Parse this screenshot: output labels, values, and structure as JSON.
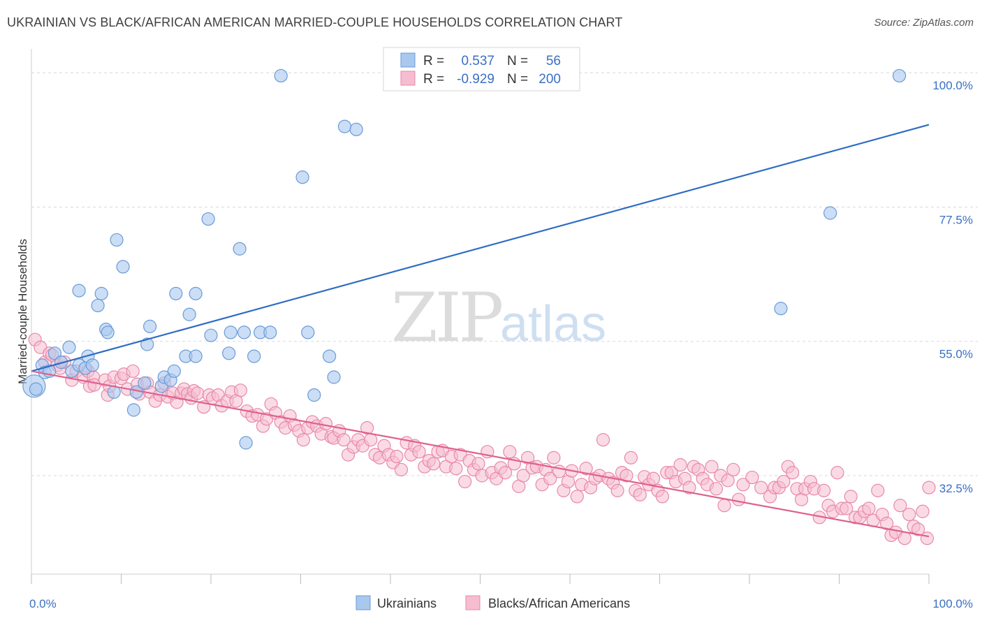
{
  "title": "UKRAINIAN VS BLACK/AFRICAN AMERICAN MARRIED-COUPLE HOUSEHOLDS CORRELATION CHART",
  "source": "Source: ZipAtlas.com",
  "watermark": {
    "zip": "ZIP",
    "atlas": "atlas"
  },
  "colors": {
    "blue_fill": "#a9c8ee",
    "blue_stroke": "#6a9ad8",
    "blue_line": "#2e6cc4",
    "pink_fill": "#f6bdd0",
    "pink_stroke": "#e888aa",
    "pink_line": "#e0608e",
    "grid": "#d8d8d8",
    "tick_label": "#3a6fc4"
  },
  "legend": {
    "rows": [
      {
        "r_label": "R =",
        "r_value": "0.537",
        "n_label": "N =",
        "n_value": "56"
      },
      {
        "r_label": "R =",
        "r_value": "-0.929",
        "n_label": "N =",
        "n_value": "200"
      }
    ]
  },
  "chart_data": {
    "type": "scatter",
    "title": "UKRAINIAN VS BLACK/AFRICAN AMERICAN MARRIED-COUPLE HOUSEHOLDS CORRELATION CHART",
    "xlabel": "",
    "ylabel": "Married-couple Households",
    "xlim": [
      0,
      100
    ],
    "ylim": [
      16,
      104
    ],
    "x_tick_labels": [
      "0.0%",
      "100.0%"
    ],
    "y_ticks": [
      32.5,
      55.0,
      77.5,
      100.0
    ],
    "y_tick_labels": [
      "32.5%",
      "55.0%",
      "77.5%",
      "100.0%"
    ],
    "grid": "horizontal dashed",
    "legend_position": "top-center",
    "series": [
      {
        "name": "Ukrainians",
        "color": "#a9c8ee",
        "r": 0.537,
        "n": 56,
        "trend": {
          "x": [
            0,
            100
          ],
          "y": [
            50.0,
            91.3
          ]
        },
        "points": [
          [
            0.3,
            47.5
          ],
          [
            0.5,
            47.0
          ],
          [
            1.2,
            51.0
          ],
          [
            1.5,
            49.8
          ],
          [
            2.0,
            50.0
          ],
          [
            2.6,
            53.0
          ],
          [
            3.3,
            51.5
          ],
          [
            4.2,
            54.0
          ],
          [
            4.5,
            50.0
          ],
          [
            5.3,
            51.0
          ],
          [
            5.3,
            63.5
          ],
          [
            6.0,
            50.5
          ],
          [
            6.3,
            52.5
          ],
          [
            6.8,
            51.0
          ],
          [
            7.4,
            61.0
          ],
          [
            7.8,
            63.0
          ],
          [
            8.3,
            57.0
          ],
          [
            8.5,
            56.5
          ],
          [
            9.2,
            46.5
          ],
          [
            9.5,
            72.0
          ],
          [
            10.2,
            67.5
          ],
          [
            11.4,
            43.5
          ],
          [
            11.7,
            46.5
          ],
          [
            12.6,
            48.0
          ],
          [
            12.9,
            54.5
          ],
          [
            13.2,
            57.5
          ],
          [
            14.5,
            47.5
          ],
          [
            14.8,
            49.0
          ],
          [
            15.5,
            48.5
          ],
          [
            15.9,
            50.0
          ],
          [
            16.1,
            63.0
          ],
          [
            17.2,
            52.5
          ],
          [
            17.6,
            59.5
          ],
          [
            18.3,
            52.5
          ],
          [
            18.3,
            63.0
          ],
          [
            19.7,
            75.5
          ],
          [
            20.0,
            56.0
          ],
          [
            22.0,
            53.0
          ],
          [
            22.2,
            56.5
          ],
          [
            23.2,
            70.5
          ],
          [
            23.7,
            56.5
          ],
          [
            24.8,
            52.5
          ],
          [
            23.9,
            38.0
          ],
          [
            25.5,
            56.5
          ],
          [
            26.6,
            56.5
          ],
          [
            27.8,
            99.5
          ],
          [
            30.8,
            56.5
          ],
          [
            30.2,
            82.5
          ],
          [
            31.5,
            46.0
          ],
          [
            33.2,
            52.5
          ],
          [
            33.7,
            49.0
          ],
          [
            34.9,
            91.0
          ],
          [
            36.2,
            90.5
          ],
          [
            83.5,
            60.5
          ],
          [
            89.0,
            76.5
          ],
          [
            96.7,
            99.5
          ]
        ]
      },
      {
        "name": "Blacks/African Americans",
        "color": "#f6bdd0",
        "r": -0.929,
        "n": 200,
        "trend": {
          "x": [
            0,
            100
          ],
          "y": [
            50.0,
            22.3
          ]
        },
        "points": [
          [
            0.4,
            55.3
          ],
          [
            1.0,
            54.0
          ],
          [
            1.5,
            51.5
          ],
          [
            2.0,
            53.0
          ],
          [
            2.3,
            52.7
          ],
          [
            2.9,
            51.0
          ],
          [
            3.2,
            50.5
          ],
          [
            3.7,
            51.5
          ],
          [
            4.5,
            48.5
          ],
          [
            5.0,
            50.0
          ],
          [
            5.8,
            49.0
          ],
          [
            6.3,
            50.0
          ],
          [
            6.9,
            49.0
          ],
          [
            6.5,
            47.5
          ],
          [
            7.0,
            47.7
          ],
          [
            8.2,
            48.5
          ],
          [
            8.5,
            46.0
          ],
          [
            8.7,
            47.5
          ],
          [
            9.2,
            49.0
          ],
          [
            10.0,
            48.8
          ],
          [
            10.3,
            49.5
          ],
          [
            10.7,
            47.0
          ],
          [
            11.3,
            50.0
          ],
          [
            11.8,
            47.8
          ],
          [
            12.0,
            46.2
          ],
          [
            12.9,
            48.0
          ],
          [
            13.2,
            46.5
          ],
          [
            13.8,
            45.0
          ],
          [
            14.3,
            46.0
          ],
          [
            14.8,
            48.0
          ],
          [
            15.2,
            45.7
          ],
          [
            15.8,
            46.3
          ],
          [
            16.2,
            44.8
          ],
          [
            16.7,
            46.3
          ],
          [
            17.0,
            47.0
          ],
          [
            17.4,
            46.2
          ],
          [
            17.8,
            45.5
          ],
          [
            18.1,
            46.7
          ],
          [
            18.5,
            46.3
          ],
          [
            19.2,
            44.0
          ],
          [
            19.8,
            46.0
          ],
          [
            20.2,
            45.5
          ],
          [
            20.8,
            46.0
          ],
          [
            21.2,
            44.2
          ],
          [
            21.8,
            45.0
          ],
          [
            22.3,
            46.5
          ],
          [
            22.8,
            45.0
          ],
          [
            23.3,
            46.8
          ],
          [
            24.0,
            43.3
          ],
          [
            24.6,
            42.5
          ],
          [
            25.2,
            42.7
          ],
          [
            25.8,
            40.8
          ],
          [
            26.2,
            42.0
          ],
          [
            26.7,
            44.5
          ],
          [
            27.2,
            43.0
          ],
          [
            27.8,
            41.5
          ],
          [
            28.3,
            40.5
          ],
          [
            28.8,
            42.5
          ],
          [
            29.3,
            41.0
          ],
          [
            29.8,
            40.0
          ],
          [
            30.3,
            38.5
          ],
          [
            30.8,
            40.5
          ],
          [
            31.3,
            41.5
          ],
          [
            31.8,
            40.8
          ],
          [
            32.3,
            39.5
          ],
          [
            32.8,
            41.2
          ],
          [
            33.4,
            39.0
          ],
          [
            33.7,
            38.8
          ],
          [
            34.3,
            40.0
          ],
          [
            34.8,
            38.5
          ],
          [
            35.3,
            36.0
          ],
          [
            35.9,
            37.3
          ],
          [
            36.4,
            38.5
          ],
          [
            36.9,
            37.5
          ],
          [
            37.4,
            40.5
          ],
          [
            37.8,
            38.5
          ],
          [
            38.3,
            36.0
          ],
          [
            38.8,
            35.5
          ],
          [
            39.3,
            37.5
          ],
          [
            39.8,
            36.0
          ],
          [
            40.3,
            34.7
          ],
          [
            40.7,
            35.7
          ],
          [
            41.2,
            33.5
          ],
          [
            41.8,
            38.0
          ],
          [
            42.3,
            36.0
          ],
          [
            42.7,
            37.5
          ],
          [
            43.2,
            36.5
          ],
          [
            43.8,
            34.0
          ],
          [
            44.3,
            35.0
          ],
          [
            44.8,
            34.5
          ],
          [
            45.3,
            36.5
          ],
          [
            45.8,
            36.7
          ],
          [
            46.2,
            34.0
          ],
          [
            46.8,
            35.7
          ],
          [
            47.3,
            33.7
          ],
          [
            47.8,
            36.0
          ],
          [
            48.3,
            31.5
          ],
          [
            48.8,
            35.0
          ],
          [
            49.3,
            33.5
          ],
          [
            49.8,
            34.5
          ],
          [
            50.2,
            32.5
          ],
          [
            50.8,
            36.5
          ],
          [
            51.3,
            33.0
          ],
          [
            51.8,
            32.0
          ],
          [
            52.3,
            33.8
          ],
          [
            52.8,
            33.0
          ],
          [
            53.3,
            36.5
          ],
          [
            53.8,
            34.5
          ],
          [
            54.3,
            30.7
          ],
          [
            54.8,
            32.5
          ],
          [
            55.3,
            35.5
          ],
          [
            55.8,
            33.8
          ],
          [
            56.3,
            34.0
          ],
          [
            56.9,
            31.0
          ],
          [
            57.3,
            33.5
          ],
          [
            57.8,
            32.0
          ],
          [
            58.2,
            35.5
          ],
          [
            58.8,
            33.2
          ],
          [
            59.3,
            30.0
          ],
          [
            59.8,
            31.5
          ],
          [
            60.2,
            33.3
          ],
          [
            60.8,
            29.0
          ],
          [
            61.3,
            31.0
          ],
          [
            61.8,
            33.7
          ],
          [
            62.3,
            30.5
          ],
          [
            62.8,
            32.0
          ],
          [
            63.3,
            32.5
          ],
          [
            63.7,
            38.5
          ],
          [
            64.3,
            32.0
          ],
          [
            64.8,
            31.3
          ],
          [
            65.3,
            30.0
          ],
          [
            65.8,
            33.0
          ],
          [
            66.3,
            32.5
          ],
          [
            66.8,
            35.5
          ],
          [
            67.3,
            30.0
          ],
          [
            67.8,
            29.3
          ],
          [
            68.3,
            32.3
          ],
          [
            68.8,
            31.0
          ],
          [
            69.3,
            32.0
          ],
          [
            69.8,
            30.0
          ],
          [
            70.3,
            29.0
          ],
          [
            70.8,
            33.0
          ],
          [
            71.3,
            33.0
          ],
          [
            71.8,
            31.5
          ],
          [
            72.3,
            34.3
          ],
          [
            72.8,
            32.0
          ],
          [
            73.3,
            30.5
          ],
          [
            73.8,
            34.0
          ],
          [
            74.3,
            33.5
          ],
          [
            74.8,
            32.0
          ],
          [
            75.3,
            31.0
          ],
          [
            75.8,
            34.0
          ],
          [
            76.3,
            30.3
          ],
          [
            76.8,
            32.5
          ],
          [
            77.2,
            27.5
          ],
          [
            77.6,
            31.7
          ],
          [
            78.2,
            33.5
          ],
          [
            78.8,
            28.5
          ],
          [
            79.3,
            31.0
          ],
          [
            80.3,
            32.2
          ],
          [
            81.3,
            30.5
          ],
          [
            82.3,
            29.0
          ],
          [
            82.8,
            30.5
          ],
          [
            83.3,
            30.5
          ],
          [
            83.8,
            31.5
          ],
          [
            84.3,
            34.0
          ],
          [
            84.8,
            33.0
          ],
          [
            85.3,
            30.3
          ],
          [
            85.8,
            28.5
          ],
          [
            86.2,
            30.3
          ],
          [
            86.8,
            31.5
          ],
          [
            87.2,
            30.3
          ],
          [
            87.8,
            25.5
          ],
          [
            88.3,
            30.0
          ],
          [
            88.8,
            27.5
          ],
          [
            89.3,
            26.5
          ],
          [
            89.8,
            33.0
          ],
          [
            90.3,
            27.0
          ],
          [
            90.8,
            27.0
          ],
          [
            91.3,
            29.0
          ],
          [
            91.8,
            25.5
          ],
          [
            92.3,
            25.5
          ],
          [
            92.8,
            26.5
          ],
          [
            93.3,
            27.0
          ],
          [
            93.8,
            25.0
          ],
          [
            94.3,
            30.0
          ],
          [
            94.8,
            26.0
          ],
          [
            95.3,
            24.5
          ],
          [
            95.8,
            22.5
          ],
          [
            96.3,
            23.0
          ],
          [
            96.8,
            27.5
          ],
          [
            97.3,
            22.0
          ],
          [
            97.8,
            26.0
          ],
          [
            98.3,
            24.0
          ],
          [
            98.8,
            23.5
          ],
          [
            99.3,
            26.5
          ],
          [
            99.8,
            22.0
          ],
          [
            100.0,
            30.5
          ]
        ]
      }
    ]
  }
}
